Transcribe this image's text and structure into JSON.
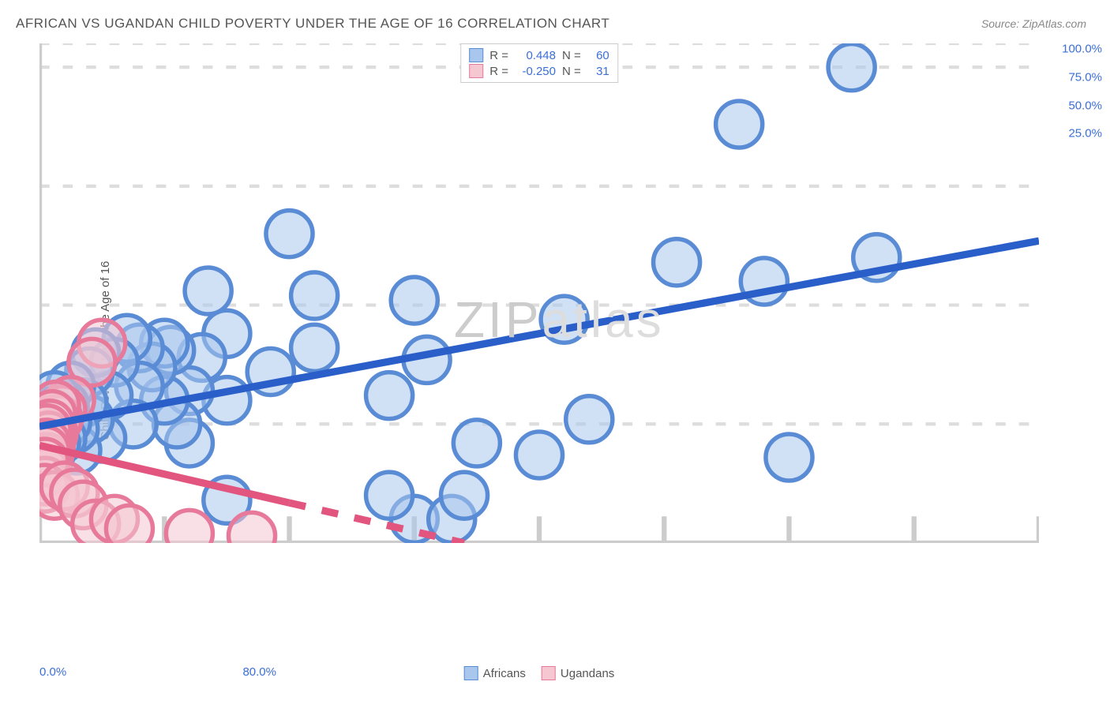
{
  "header": {
    "title": "AFRICAN VS UGANDAN CHILD POVERTY UNDER THE AGE OF 16 CORRELATION CHART",
    "source_prefix": "Source: ",
    "source_name": "ZipAtlas.com"
  },
  "watermark": {
    "part1": "ZIP",
    "part2": "atlas"
  },
  "chart": {
    "type": "scatter",
    "y_axis_label": "Child Poverty Under the Age of 16",
    "background_color": "#ffffff",
    "grid_color": "#dddddd",
    "axis_line_color": "#cccccc",
    "xlim": [
      0,
      80
    ],
    "ylim": [
      0,
      105
    ],
    "x_ticks": [
      0,
      10,
      20,
      30,
      40,
      50,
      60,
      70,
      80
    ],
    "x_tick_labels_shown": {
      "0": "0.0%",
      "80": "80.0%"
    },
    "y_ticks": [
      25,
      50,
      75,
      100
    ],
    "y_tick_labels": {
      "25": "25.0%",
      "50": "50.0%",
      "75": "75.0%",
      "100": "100.0%"
    },
    "marker_radius": 7,
    "marker_opacity": 0.55,
    "trend_line_width": 2.2,
    "series": [
      {
        "name": "Africans",
        "key": "africans",
        "fill": "#a9c7ed",
        "stroke": "#5a8cd6",
        "line_color": "#2a5fc9",
        "r": "0.448",
        "n": "60",
        "trend": {
          "x1": 0,
          "y1": 24.5,
          "x2": 80,
          "y2": 63.5,
          "dash_from_x": null
        },
        "points": [
          [
            65,
            100
          ],
          [
            56,
            88
          ],
          [
            51,
            59
          ],
          [
            67,
            60
          ],
          [
            58,
            55
          ],
          [
            60,
            18
          ],
          [
            42,
            47
          ],
          [
            44,
            26
          ],
          [
            40,
            18.5
          ],
          [
            31,
            38.5
          ],
          [
            30,
            51
          ],
          [
            30,
            5
          ],
          [
            33,
            5
          ],
          [
            34,
            10
          ],
          [
            35,
            21
          ],
          [
            28,
            31
          ],
          [
            28,
            10
          ],
          [
            22,
            52
          ],
          [
            22,
            41
          ],
          [
            20,
            65
          ],
          [
            18.5,
            36
          ],
          [
            15,
            44
          ],
          [
            15,
            30
          ],
          [
            15,
            9
          ],
          [
            13.5,
            53
          ],
          [
            13,
            39
          ],
          [
            12,
            32
          ],
          [
            12,
            21
          ],
          [
            11,
            25
          ],
          [
            10.5,
            40.5
          ],
          [
            10,
            30
          ],
          [
            10,
            42
          ],
          [
            9,
            37
          ],
          [
            8,
            41
          ],
          [
            8,
            33
          ],
          [
            7.5,
            25
          ],
          [
            7,
            43
          ],
          [
            6,
            38
          ],
          [
            5.5,
            31
          ],
          [
            5,
            22
          ],
          [
            4.5,
            40
          ],
          [
            4,
            26
          ],
          [
            4,
            36
          ],
          [
            3.5,
            29.5
          ],
          [
            3,
            19.5
          ],
          [
            2.8,
            24
          ],
          [
            2.5,
            33
          ],
          [
            2.2,
            25.5
          ],
          [
            2,
            29
          ],
          [
            1.8,
            22
          ],
          [
            1.5,
            27
          ],
          [
            1.3,
            21
          ],
          [
            1.2,
            31
          ],
          [
            1,
            24.5
          ],
          [
            0.9,
            19
          ],
          [
            0.8,
            26
          ],
          [
            0.7,
            21.5
          ],
          [
            0.6,
            27.5
          ],
          [
            0.5,
            23
          ],
          [
            0.4,
            25
          ]
        ]
      },
      {
        "name": "Ugandans",
        "key": "ugandans",
        "fill": "#f4c7d1",
        "stroke": "#e77a9a",
        "line_color": "#e1557e",
        "r": "-0.250",
        "n": "31",
        "trend": {
          "x1": 0,
          "y1": 20.5,
          "x2": 34,
          "y2": 0,
          "dash_from_x": 20
        },
        "points": [
          [
            5,
            42
          ],
          [
            4.2,
            38
          ],
          [
            2.5,
            30
          ],
          [
            1.8,
            28
          ],
          [
            1.5,
            26
          ],
          [
            1.3,
            29
          ],
          [
            1.1,
            23
          ],
          [
            1,
            27
          ],
          [
            0.9,
            21
          ],
          [
            0.85,
            25
          ],
          [
            0.8,
            19
          ],
          [
            0.75,
            22.5
          ],
          [
            0.7,
            17.5
          ],
          [
            0.65,
            20.5
          ],
          [
            0.6,
            24
          ],
          [
            0.58,
            18
          ],
          [
            0.55,
            21
          ],
          [
            0.5,
            15
          ],
          [
            0.48,
            19.5
          ],
          [
            0.45,
            13
          ],
          [
            0.42,
            17
          ],
          [
            0.4,
            11.5
          ],
          [
            1.2,
            10
          ],
          [
            2,
            12
          ],
          [
            2.8,
            10.5
          ],
          [
            3.5,
            8
          ],
          [
            4.5,
            4
          ],
          [
            6,
            5
          ],
          [
            7.2,
            3
          ],
          [
            12,
            2
          ],
          [
            17,
            1.5
          ]
        ]
      }
    ]
  },
  "legend": {
    "r_label": "R =",
    "n_label": "N ="
  }
}
